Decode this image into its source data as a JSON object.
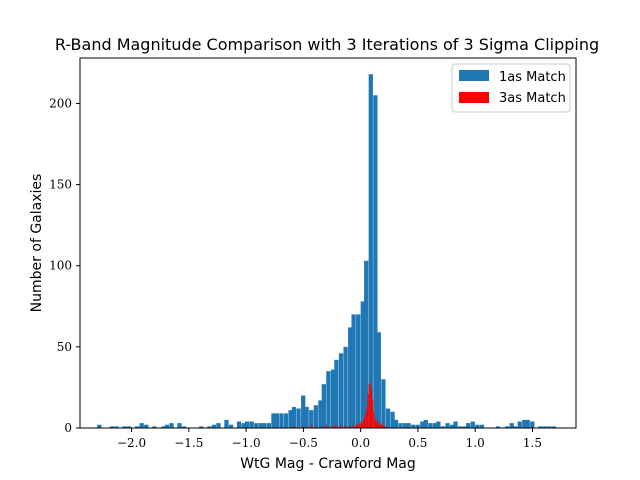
{
  "chart_data": {
    "type": "bar",
    "title": "R-Band Magnitude Comparison with 3 Iterations of 3 Sigma Clipping",
    "xlabel": "WtG Mag - Crawford Mag",
    "ylabel": "Number of Galaxies",
    "xlim": [
      -2.45,
      1.88
    ],
    "ylim": [
      0,
      228
    ],
    "xticks": [
      -2.0,
      -1.5,
      -1.0,
      -0.5,
      0.0,
      0.5,
      1.0,
      1.5
    ],
    "xtick_labels": [
      "−2.0",
      "−1.5",
      "−1.0",
      "−0.5",
      "0.0",
      "0.5",
      "1.0",
      "1.5"
    ],
    "yticks": [
      0,
      50,
      100,
      150,
      200
    ],
    "ytick_labels": [
      "0",
      "50",
      "100",
      "150",
      "200"
    ],
    "legend_position": "top-right",
    "grid": false,
    "series": [
      {
        "name": "1as Match",
        "color": "#1f77b4",
        "bin_width": 0.0372,
        "bins": [
          [
            -2.3,
            2
          ],
          [
            -2.19,
            1
          ],
          [
            -2.15,
            1
          ],
          [
            -2.08,
            1
          ],
          [
            -2.04,
            1
          ],
          [
            -1.97,
            1
          ],
          [
            -1.93,
            3
          ],
          [
            -1.89,
            2
          ],
          [
            -1.82,
            1
          ],
          [
            -1.74,
            1
          ],
          [
            -1.71,
            2
          ],
          [
            -1.67,
            3
          ],
          [
            -1.6,
            3
          ],
          [
            -1.56,
            1
          ],
          [
            -1.41,
            1
          ],
          [
            -1.34,
            1
          ],
          [
            -1.3,
            2
          ],
          [
            -1.26,
            3
          ],
          [
            -1.19,
            5
          ],
          [
            -1.15,
            2
          ],
          [
            -1.08,
            4
          ],
          [
            -1.04,
            3
          ],
          [
            -1.01,
            4
          ],
          [
            -0.97,
            4
          ],
          [
            -0.93,
            3
          ],
          [
            -0.89,
            3
          ],
          [
            -0.86,
            3
          ],
          [
            -0.82,
            3
          ],
          [
            -0.78,
            9
          ],
          [
            -0.75,
            9
          ],
          [
            -0.71,
            9
          ],
          [
            -0.67,
            9
          ],
          [
            -0.63,
            11
          ],
          [
            -0.6,
            13
          ],
          [
            -0.56,
            12
          ],
          [
            -0.52,
            20
          ],
          [
            -0.49,
            13
          ],
          [
            -0.45,
            11
          ],
          [
            -0.41,
            14
          ],
          [
            -0.37,
            17
          ],
          [
            -0.34,
            27
          ],
          [
            -0.3,
            35
          ],
          [
            -0.26,
            36
          ],
          [
            -0.23,
            42
          ],
          [
            -0.19,
            46
          ],
          [
            -0.15,
            50
          ],
          [
            -0.11,
            62
          ],
          [
            -0.08,
            70
          ],
          [
            -0.04,
            70
          ],
          [
            0.0,
            78
          ],
          [
            0.03,
            103
          ],
          [
            0.07,
            218
          ],
          [
            0.11,
            205
          ],
          [
            0.14,
            59
          ],
          [
            0.18,
            30
          ],
          [
            0.22,
            12
          ],
          [
            0.26,
            10
          ],
          [
            0.29,
            5
          ],
          [
            0.33,
            3
          ],
          [
            0.37,
            3
          ],
          [
            0.4,
            3
          ],
          [
            0.44,
            2
          ],
          [
            0.48,
            2
          ],
          [
            0.52,
            4
          ],
          [
            0.55,
            5
          ],
          [
            0.59,
            3
          ],
          [
            0.63,
            3
          ],
          [
            0.66,
            4
          ],
          [
            0.7,
            1
          ],
          [
            0.74,
            3
          ],
          [
            0.78,
            2
          ],
          [
            0.81,
            4
          ],
          [
            0.85,
            1
          ],
          [
            0.89,
            1
          ],
          [
            0.92,
            3
          ],
          [
            0.96,
            4
          ],
          [
            1.0,
            2
          ],
          [
            1.04,
            2
          ],
          [
            1.18,
            1
          ],
          [
            1.26,
            1
          ],
          [
            1.3,
            3
          ],
          [
            1.33,
            1
          ],
          [
            1.37,
            4
          ],
          [
            1.41,
            5
          ],
          [
            1.44,
            5
          ],
          [
            1.48,
            4
          ],
          [
            1.55,
            1
          ],
          [
            1.59,
            1
          ],
          [
            1.63,
            1
          ],
          [
            1.67,
            1
          ]
        ]
      },
      {
        "name": "3as Match",
        "color": "#ff0000",
        "bin_width": 0.0094,
        "bins": [
          [
            -0.6,
            1
          ],
          [
            -0.58,
            1
          ],
          [
            -0.52,
            1
          ],
          [
            -0.5,
            1
          ],
          [
            -0.45,
            1
          ],
          [
            -0.43,
            2
          ],
          [
            -0.4,
            1
          ],
          [
            -0.35,
            1
          ],
          [
            -0.31,
            1
          ],
          [
            -0.3,
            2
          ],
          [
            -0.27,
            1
          ],
          [
            -0.25,
            1
          ],
          [
            -0.23,
            2
          ],
          [
            -0.21,
            1
          ],
          [
            -0.19,
            1
          ],
          [
            -0.17,
            2
          ],
          [
            -0.15,
            1
          ],
          [
            -0.13,
            1
          ],
          [
            -0.11,
            1
          ],
          [
            -0.09,
            1
          ],
          [
            -0.07,
            2
          ],
          [
            -0.05,
            1
          ],
          [
            -0.04,
            3
          ],
          [
            -0.03,
            2
          ],
          [
            -0.02,
            2
          ],
          [
            -0.01,
            3
          ],
          [
            0.0,
            4
          ],
          [
            0.01,
            3
          ],
          [
            0.02,
            5
          ],
          [
            0.03,
            7
          ],
          [
            0.04,
            9
          ],
          [
            0.05,
            13
          ],
          [
            0.06,
            21
          ],
          [
            0.07,
            27
          ],
          [
            0.08,
            28
          ],
          [
            0.09,
            24
          ],
          [
            0.1,
            17
          ],
          [
            0.11,
            10
          ],
          [
            0.12,
            6
          ],
          [
            0.13,
            4
          ],
          [
            0.14,
            5
          ],
          [
            0.15,
            3
          ],
          [
            0.16,
            2
          ],
          [
            0.17,
            3
          ],
          [
            0.18,
            2
          ],
          [
            0.19,
            2
          ],
          [
            0.2,
            1
          ],
          [
            0.21,
            1
          ]
        ]
      }
    ]
  }
}
